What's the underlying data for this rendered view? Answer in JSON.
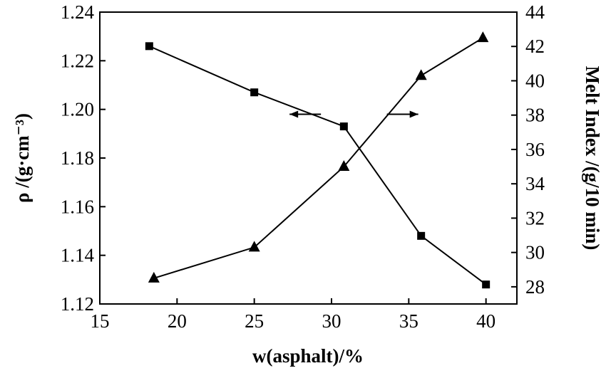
{
  "chart_data": {
    "type": "line",
    "xlabel": "w(asphalt)/%",
    "ylabel_left": "ρ /(g·cm⁻³)",
    "ylabel_right": "Melt Index /(g/10 min)",
    "xlim": [
      15,
      42
    ],
    "ylim_left": [
      1.12,
      1.24
    ],
    "ylim_right": [
      27,
      44
    ],
    "xticks": [
      "15",
      "20",
      "25",
      "30",
      "35",
      "40"
    ],
    "yticks_left": [
      "1.12",
      "1.14",
      "1.16",
      "1.18",
      "1.20",
      "1.22",
      "1.24"
    ],
    "yticks_right": [
      "28",
      "30",
      "32",
      "34",
      "36",
      "38",
      "40",
      "42",
      "44"
    ],
    "grid": false,
    "series": [
      {
        "marker": "square",
        "axis": "left",
        "x": [
          18.2,
          25.0,
          30.8,
          35.8,
          40.0
        ],
        "y": [
          1.226,
          1.207,
          1.193,
          1.148,
          1.128
        ]
      },
      {
        "marker": "triangle",
        "axis": "right",
        "x": [
          18.5,
          25.0,
          30.8,
          35.8,
          39.8
        ],
        "y": [
          28.5,
          30.3,
          35.0,
          40.3,
          42.5
        ]
      }
    ],
    "annotations": [
      {
        "kind": "arrow",
        "direction": "left",
        "x": 28.3,
        "y_left": 1.198
      },
      {
        "kind": "arrow",
        "direction": "right",
        "x": 34.6,
        "y_left": 1.198
      }
    ]
  }
}
